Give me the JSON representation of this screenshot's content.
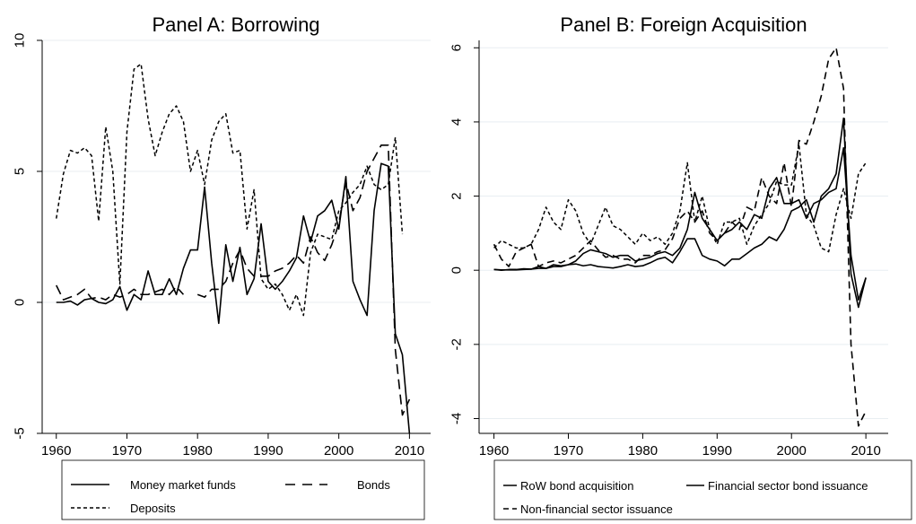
{
  "chart_data": [
    {
      "type": "line",
      "title": "Panel A: Borrowing",
      "xlabel": "",
      "ylabel": "",
      "xlim": [
        1958,
        2013
      ],
      "ylim": [
        -5,
        10
      ],
      "x_ticks": [
        1960,
        1970,
        1980,
        1990,
        2000,
        2010
      ],
      "y_ticks": [
        -5,
        0,
        5,
        10
      ],
      "grid": true,
      "legend": {
        "placement": "bottom",
        "items": [
          {
            "label": "Money market funds",
            "style": "solid"
          },
          {
            "label": "Bonds",
            "style": "long-dash"
          },
          {
            "label": "Deposits",
            "style": "short-dash"
          }
        ]
      },
      "x": [
        1960,
        1961,
        1962,
        1963,
        1964,
        1965,
        1966,
        1967,
        1968,
        1969,
        1970,
        1971,
        1972,
        1973,
        1974,
        1975,
        1976,
        1977,
        1978,
        1979,
        1980,
        1981,
        1982,
        1983,
        1984,
        1985,
        1986,
        1987,
        1988,
        1989,
        1990,
        1991,
        1992,
        1993,
        1994,
        1995,
        1996,
        1997,
        1998,
        1999,
        2000,
        2001,
        2002,
        2003,
        2004,
        2005,
        2006,
        2007,
        2008,
        2009,
        2010
      ],
      "series": [
        {
          "name": "Money market funds",
          "style": "solid",
          "values": [
            0,
            0,
            0.05,
            -0.1,
            0.1,
            0.15,
            0,
            -0.05,
            0.1,
            0.6,
            -0.3,
            0.3,
            0.1,
            1.2,
            0.3,
            0.3,
            0.9,
            0.3,
            1.3,
            2,
            2,
            4.4,
            1.5,
            -0.8,
            2.2,
            0.8,
            2.1,
            0.3,
            0.9,
            3,
            0.8,
            0.5,
            0.8,
            1.2,
            1.7,
            3.3,
            2.3,
            3.3,
            3.5,
            3.9,
            2.8,
            4.8,
            0.8,
            0.1,
            -0.5,
            3.5,
            5.3,
            5.2,
            -1.2,
            -2,
            -5
          ]
        },
        {
          "name": "Bonds",
          "style": "long-dash",
          "values": [
            0.65,
            0.1,
            0.2,
            0.3,
            0.5,
            0.15,
            0.2,
            0.1,
            0.3,
            0.2,
            0.3,
            0.5,
            0.3,
            0.3,
            0.4,
            0.5,
            0.3,
            0.6,
            0.3,
            null,
            0.3,
            0.2,
            0.5,
            0.5,
            0.8,
            1.5,
            2,
            1.3,
            1,
            1,
            1,
            1.2,
            1.3,
            1.5,
            1.8,
            1.5,
            2.5,
            1.9,
            1.6,
            2.2,
            3,
            4.6,
            3.5,
            4,
            5,
            5.5,
            6,
            6,
            -1.8,
            -4.3,
            -3.7
          ]
        },
        {
          "name": "Deposits",
          "style": "short-dash",
          "values": [
            3.2,
            4.9,
            5.8,
            5.7,
            5.9,
            5.6,
            3.1,
            6.7,
            5,
            0.7,
            6.5,
            8.9,
            9.1,
            7,
            5.6,
            6.5,
            7.2,
            7.5,
            6.9,
            5,
            5.8,
            4.5,
            6.2,
            6.9,
            7.2,
            5.7,
            5.8,
            2.8,
            4.3,
            0.9,
            0.5,
            0.7,
            0.3,
            -0.3,
            0.3,
            -0.5,
            1.9,
            2.6,
            2.5,
            2.4,
            3.5,
            3.8,
            4.2,
            4.5,
            5.2,
            4.5,
            4.3,
            4.5,
            6.3,
            2.6,
            null
          ]
        }
      ]
    },
    {
      "type": "line",
      "title": "Panel B: Foreign Acquisition",
      "xlabel": "",
      "ylabel": "",
      "xlim": [
        1958,
        2013
      ],
      "ylim": [
        -4.4,
        6.2
      ],
      "x_ticks": [
        1960,
        1970,
        1980,
        1990,
        2000,
        2010
      ],
      "y_ticks": [
        -4,
        -2,
        0,
        2,
        4,
        6
      ],
      "grid": true,
      "legend": {
        "placement": "bottom",
        "items": [
          {
            "label": "RoW bond acquisition",
            "style": "solid"
          },
          {
            "label": "Financial sector bond issuance",
            "style": "solid"
          },
          {
            "label": "Non-financial sector issuance",
            "style": "dash"
          }
        ]
      },
      "x": [
        1960,
        1961,
        1962,
        1963,
        1964,
        1965,
        1966,
        1967,
        1968,
        1969,
        1970,
        1971,
        1972,
        1973,
        1974,
        1975,
        1976,
        1977,
        1978,
        1979,
        1980,
        1981,
        1982,
        1983,
        1984,
        1985,
        1986,
        1987,
        1988,
        1989,
        1990,
        1991,
        1992,
        1993,
        1994,
        1995,
        1996,
        1997,
        1998,
        1999,
        2000,
        2001,
        2002,
        2003,
        2004,
        2005,
        2006,
        2007,
        2008,
        2009,
        2010
      ],
      "series": [
        {
          "name": "RoW bond acquisition",
          "style": "solid",
          "values": [
            0.02,
            0,
            0.02,
            0.02,
            0.04,
            0.03,
            0.1,
            0.05,
            0.15,
            0.12,
            0.15,
            0.17,
            0.12,
            0.15,
            0.1,
            0.08,
            0.06,
            0.1,
            0.15,
            0.1,
            0.12,
            0.2,
            0.3,
            0.35,
            0.2,
            0.5,
            0.85,
            0.85,
            0.4,
            0.3,
            0.25,
            0.12,
            0.3,
            0.3,
            0.45,
            0.6,
            0.7,
            0.9,
            0.8,
            1.1,
            1.6,
            1.7,
            1.9,
            1.3,
            2,
            2.2,
            2.6,
            4.1,
            -0.1,
            -1,
            -0.2
          ]
        },
        {
          "name": "Financial sector bond issuance",
          "style": "solid",
          "values": [
            0.02,
            0.01,
            0.01,
            0.01,
            0.02,
            0.03,
            0.05,
            0.05,
            0.1,
            0.1,
            0.15,
            0.25,
            0.45,
            0.55,
            0.5,
            0.45,
            0.35,
            0.4,
            0.4,
            0.25,
            0.3,
            0.35,
            0.45,
            0.5,
            0.4,
            0.6,
            1.1,
            2.1,
            1.4,
            1.1,
            0.8,
            1,
            1.1,
            1.3,
            1.1,
            1.5,
            1.4,
            2.2,
            2.5,
            1.8,
            1.8,
            1.9,
            1.4,
            1.8,
            1.9,
            2.1,
            2.2,
            3.3,
            0.4,
            -0.8,
            -0.2
          ]
        },
        {
          "name": "Non-financial sector issuance",
          "style": "dash",
          "values": [
            0.7,
            0.3,
            0.1,
            0.5,
            0.6,
            0.7,
            0.1,
            0.2,
            0.25,
            0.2,
            0.3,
            0.4,
            0.6,
            0.8,
            0.55,
            0.35,
            0.4,
            0.3,
            0.3,
            0.2,
            0.4,
            0.4,
            0.5,
            0.55,
            0.85,
            1.4,
            1.6,
            1.3,
            1.6,
            1,
            0.8,
            1,
            1.3,
            1.1,
            1.7,
            1.6,
            2.5,
            2,
            1.8,
            2.9,
            1.7,
            3.5,
            3.4,
            4,
            4.7,
            5.7,
            6,
            4.9,
            -2,
            -4.2,
            -3.8
          ]
        },
        {
          "name": "",
          "style": "short-dash",
          "values": [
            0.6,
            0.8,
            0.7,
            0.6,
            0.6,
            0.7,
            1.1,
            1.7,
            1.3,
            1.1,
            1.9,
            1.6,
            1,
            0.7,
            1.2,
            1.7,
            1.2,
            1.1,
            0.9,
            0.7,
            1,
            0.8,
            0.9,
            0.7,
            1,
            1.6,
            2.9,
            1.3,
            2,
            1.1,
            0.7,
            1.3,
            1.3,
            1.4,
            0.7,
            1.2,
            1.5,
            1.8,
            2.4,
            2.3,
            2.3,
            3.4,
            1.5,
            1.2,
            0.6,
            0.5,
            1.5,
            2.2,
            1.4,
            2.6,
            2.9
          ]
        }
      ]
    }
  ]
}
